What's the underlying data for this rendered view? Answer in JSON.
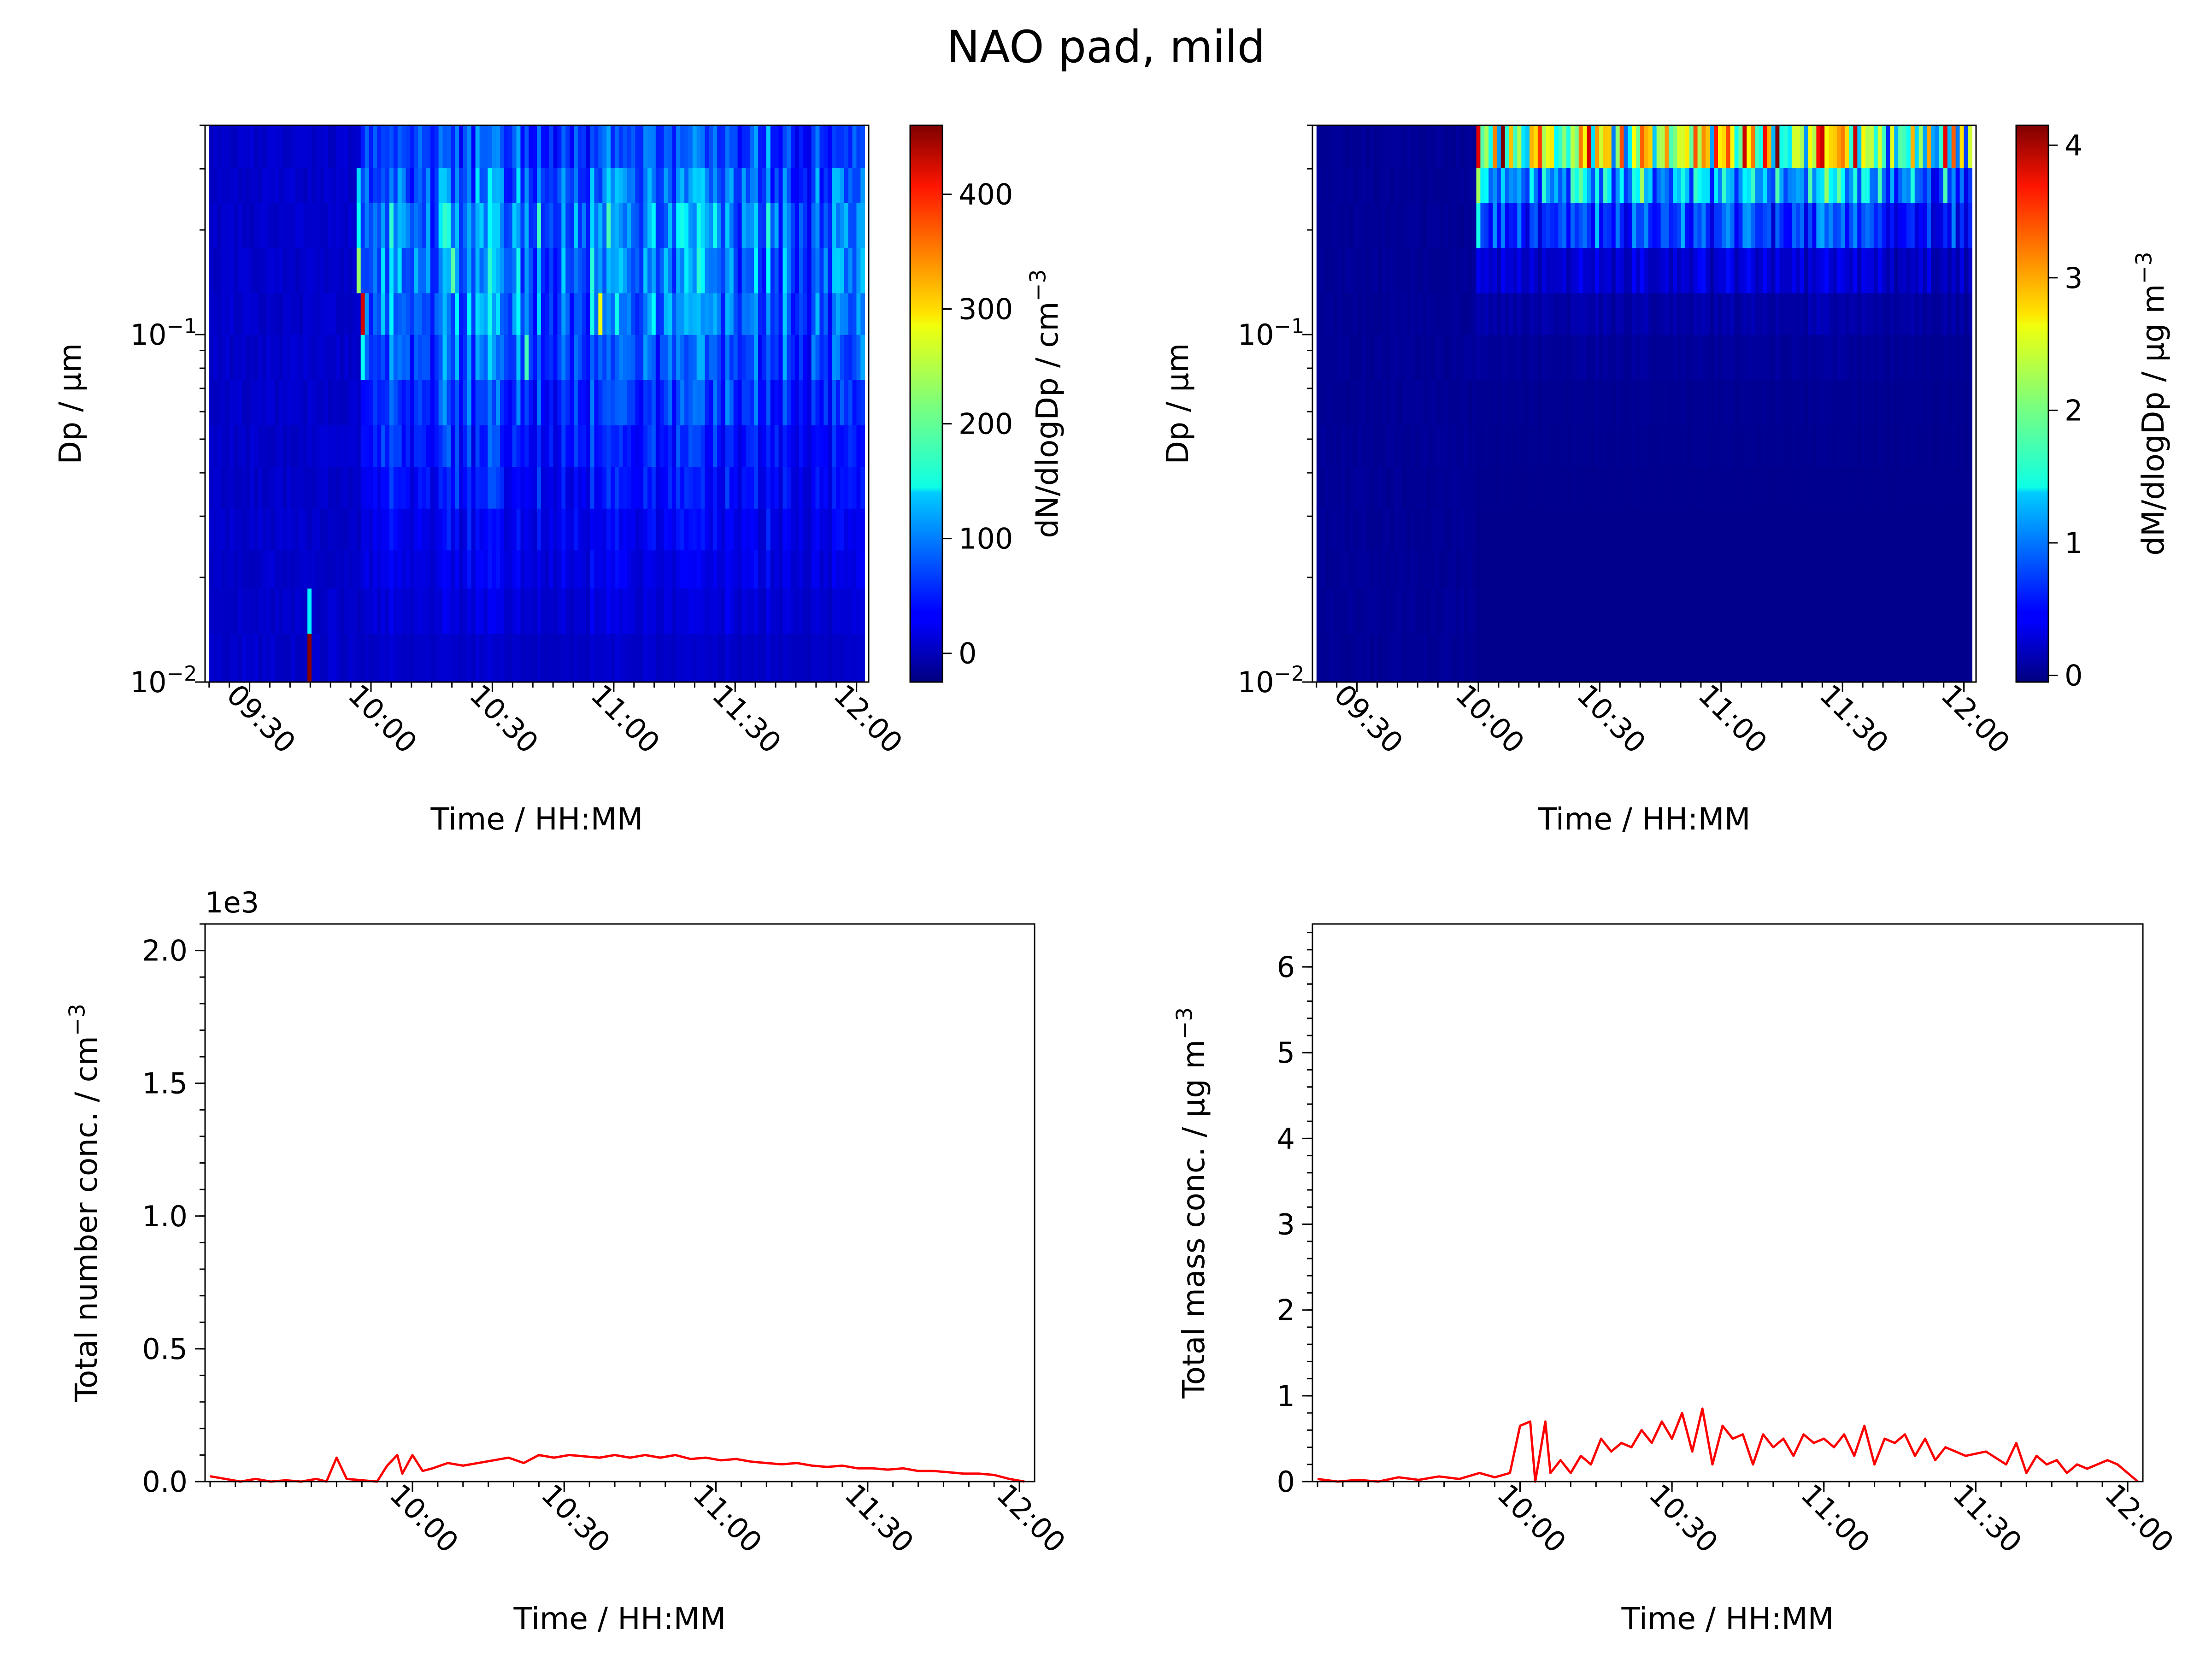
{
  "figure": {
    "title": "NAO pad, mild"
  },
  "colors": {
    "line": "#ff0000",
    "frame": "#000000"
  },
  "chart_data": [
    {
      "id": "number-size-dist",
      "type": "heatmap",
      "xlabel": "Time / HH:MM",
      "ylabel": "Dp / μm",
      "yscale": "log",
      "xlim": [
        "09:19",
        "12:03"
      ],
      "ylim": [
        0.01,
        0.4
      ],
      "xticks": [
        "09:30",
        "10:00",
        "10:30",
        "11:00",
        "11:30",
        "12:00"
      ],
      "yticks": [
        {
          "base": "10",
          "exp": "−2",
          "value": 0.01
        },
        {
          "base": "10",
          "exp": "−1",
          "value": 0.1
        }
      ],
      "colorbar": {
        "label": "dN/dlogDp / cm",
        "label_exp": "−3",
        "range": [
          -25,
          460
        ],
        "ticks": [
          "0",
          "100",
          "200",
          "300",
          "400"
        ],
        "tick_values": [
          0,
          100,
          200,
          300,
          400
        ]
      },
      "time_range": [
        "09:20",
        "12:02"
      ],
      "time_bins": 160,
      "size_bins_log10": [
        -2.0,
        -1.86,
        -1.73,
        -1.62,
        -1.5,
        -1.38,
        -1.26,
        -1.13,
        -1.0,
        -0.88,
        -0.75,
        -0.62,
        -0.52,
        -0.4
      ],
      "size_profile": [
        10,
        18,
        25,
        30,
        38,
        48,
        58,
        75,
        90,
        95,
        100,
        85,
        70
      ],
      "onset": "09:57",
      "base_before_onset": 12,
      "hotspots": [
        {
          "time": "09:45",
          "bin": 0,
          "value": 455
        },
        {
          "time": "09:45",
          "bin": 1,
          "value": 150
        },
        {
          "time": "09:58",
          "bin": 8,
          "value": 420
        },
        {
          "time": "09:58",
          "bin": 7,
          "value": 160
        },
        {
          "time": "09:57",
          "bin": 9,
          "value": 230
        },
        {
          "time": "09:57",
          "bin": 10,
          "value": 160
        },
        {
          "time": "09:57",
          "bin": 11,
          "value": 140
        },
        {
          "time": "10:57",
          "bin": 8,
          "value": 270
        },
        {
          "time": "10:20",
          "bin": 9,
          "value": 200
        },
        {
          "time": "10:38",
          "bin": 7,
          "value": 190
        }
      ]
    },
    {
      "id": "mass-size-dist",
      "type": "heatmap",
      "xlabel": "Time / HH:MM",
      "ylabel": "Dp / μm",
      "yscale": "log",
      "xlim": [
        "09:19",
        "12:03"
      ],
      "ylim": [
        0.01,
        0.4
      ],
      "xticks": [
        "09:30",
        "10:00",
        "10:30",
        "11:00",
        "11:30",
        "12:00"
      ],
      "yticks": [
        {
          "base": "10",
          "exp": "−2",
          "value": 0.01
        },
        {
          "base": "10",
          "exp": "−1",
          "value": 0.1
        }
      ],
      "colorbar": {
        "label": "dM/dlogDp / μg m",
        "label_exp": "−3",
        "range": [
          -0.05,
          4.15
        ],
        "ticks": [
          "0",
          "1",
          "2",
          "3",
          "4"
        ],
        "tick_values": [
          0,
          1,
          2,
          3,
          4
        ]
      },
      "time_range": [
        "09:20",
        "12:02"
      ],
      "time_bins": 160,
      "size_bins_log10": [
        -2.0,
        -1.86,
        -1.73,
        -1.62,
        -1.5,
        -1.38,
        -1.26,
        -1.13,
        -1.0,
        -0.88,
        -0.75,
        -0.62,
        -0.52,
        -0.4
      ],
      "size_profile": [
        0,
        0,
        0,
        0,
        0.01,
        0.02,
        0.03,
        0.06,
        0.12,
        0.3,
        0.7,
        1.2,
        2.4
      ],
      "onset": "09:59",
      "base_before_onset": 0.05,
      "hotspots": [
        {
          "time": "10:27",
          "bin": 12,
          "value": 3.8
        },
        {
          "time": "10:15",
          "bin": 12,
          "value": 3.4
        },
        {
          "time": "10:35",
          "bin": 12,
          "value": 3.3
        },
        {
          "time": "11:11",
          "bin": 12,
          "value": 3.6
        },
        {
          "time": "10:00",
          "bin": 11,
          "value": 2.2
        },
        {
          "time": "10:00",
          "bin": 10,
          "value": 1.6
        },
        {
          "time": "10:42",
          "bin": 12,
          "value": 2.9
        }
      ]
    },
    {
      "id": "total-number",
      "type": "line",
      "xlabel": "Time / HH:MM",
      "ylabel": "Total number conc. / cm",
      "ylabel_exp": "−3",
      "offset_text": "1e3",
      "xlim": [
        "09:19",
        "12:03"
      ],
      "ylim": [
        0,
        2.1
      ],
      "xticks": [
        "10:00",
        "10:30",
        "11:00",
        "11:30",
        "12:00"
      ],
      "yticks": [
        "0.0",
        "0.5",
        "1.0",
        "1.5",
        "2.0"
      ],
      "ytick_values": [
        0,
        0.5,
        1.0,
        1.5,
        2.0
      ],
      "series": [
        {
          "x": [
            "09:20",
            "09:23",
            "09:26",
            "09:29",
            "09:32",
            "09:35",
            "09:38",
            "09:41",
            "09:43",
            "09:45",
            "09:47",
            "09:50",
            "09:53",
            "09:55",
            "09:57",
            "09:58",
            "10:00",
            "10:02",
            "10:04",
            "10:07",
            "10:10",
            "10:13",
            "10:16",
            "10:19",
            "10:22",
            "10:25",
            "10:28",
            "10:31",
            "10:34",
            "10:37",
            "10:40",
            "10:43",
            "10:46",
            "10:49",
            "10:52",
            "10:55",
            "10:58",
            "11:01",
            "11:04",
            "11:07",
            "11:10",
            "11:13",
            "11:16",
            "11:19",
            "11:22",
            "11:25",
            "11:28",
            "11:31",
            "11:34",
            "11:37",
            "11:40",
            "11:43",
            "11:46",
            "11:49",
            "11:52",
            "11:55",
            "11:58",
            "12:01"
          ],
          "y": [
            0.02,
            0.01,
            0.0,
            0.01,
            0.0,
            0.005,
            0.0,
            0.01,
            0.0,
            0.09,
            0.01,
            0.005,
            0.0,
            0.06,
            0.1,
            0.03,
            0.1,
            0.04,
            0.05,
            0.07,
            0.06,
            0.07,
            0.08,
            0.09,
            0.07,
            0.1,
            0.09,
            0.1,
            0.095,
            0.09,
            0.1,
            0.09,
            0.1,
            0.09,
            0.1,
            0.085,
            0.09,
            0.08,
            0.085,
            0.075,
            0.07,
            0.065,
            0.07,
            0.06,
            0.055,
            0.06,
            0.05,
            0.05,
            0.045,
            0.05,
            0.04,
            0.04,
            0.035,
            0.03,
            0.03,
            0.025,
            0.01,
            0.0
          ]
        }
      ]
    },
    {
      "id": "total-mass",
      "type": "line",
      "xlabel": "Time / HH:MM",
      "ylabel": "Total mass conc. / μg m",
      "ylabel_exp": "−3",
      "xlim": [
        "09:19",
        "12:03"
      ],
      "ylim": [
        0,
        6.5
      ],
      "xticks": [
        "10:00",
        "10:30",
        "11:00",
        "11:30",
        "12:00"
      ],
      "yticks": [
        "0",
        "1",
        "2",
        "3",
        "4",
        "5",
        "6"
      ],
      "ytick_values": [
        0,
        1,
        2,
        3,
        4,
        5,
        6
      ],
      "series": [
        {
          "x": [
            "09:20",
            "09:24",
            "09:28",
            "09:32",
            "09:36",
            "09:40",
            "09:44",
            "09:48",
            "09:52",
            "09:55",
            "09:58",
            "10:00",
            "10:02",
            "10:03",
            "10:05",
            "10:06",
            "10:08",
            "10:10",
            "10:12",
            "10:14",
            "10:16",
            "10:18",
            "10:20",
            "10:22",
            "10:24",
            "10:26",
            "10:28",
            "10:30",
            "10:32",
            "10:34",
            "10:36",
            "10:38",
            "10:40",
            "10:42",
            "10:44",
            "10:46",
            "10:48",
            "10:50",
            "10:52",
            "10:54",
            "10:56",
            "10:58",
            "11:00",
            "11:02",
            "11:04",
            "11:06",
            "11:08",
            "11:10",
            "11:12",
            "11:14",
            "11:16",
            "11:18",
            "11:20",
            "11:22",
            "11:24",
            "11:26",
            "11:28",
            "11:32",
            "11:36",
            "11:38",
            "11:40",
            "11:42",
            "11:44",
            "11:46",
            "11:48",
            "11:50",
            "11:52",
            "11:54",
            "11:56",
            "11:58",
            "12:00",
            "12:02"
          ],
          "y": [
            0.03,
            0.0,
            0.02,
            0.0,
            0.05,
            0.02,
            0.06,
            0.03,
            0.1,
            0.05,
            0.1,
            0.65,
            0.7,
            0.0,
            0.7,
            0.1,
            0.25,
            0.1,
            0.3,
            0.2,
            0.5,
            0.35,
            0.45,
            0.4,
            0.6,
            0.45,
            0.7,
            0.5,
            0.8,
            0.35,
            0.85,
            0.2,
            0.65,
            0.5,
            0.55,
            0.2,
            0.55,
            0.4,
            0.5,
            0.3,
            0.55,
            0.45,
            0.5,
            0.4,
            0.55,
            0.3,
            0.65,
            0.2,
            0.5,
            0.45,
            0.55,
            0.3,
            0.5,
            0.25,
            0.4,
            0.35,
            0.3,
            0.35,
            0.2,
            0.45,
            0.1,
            0.3,
            0.2,
            0.25,
            0.1,
            0.2,
            0.15,
            0.2,
            0.25,
            0.2,
            0.1,
            0.0
          ]
        }
      ]
    }
  ]
}
